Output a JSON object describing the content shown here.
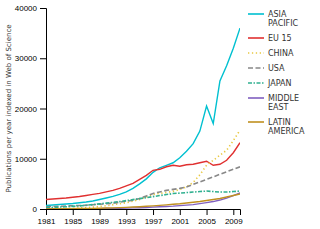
{
  "chart_data": {
    "type": "line",
    "y_label": "Publications per year indexed in Web of Science",
    "x": [
      1981,
      1982,
      1983,
      1984,
      1985,
      1986,
      1987,
      1988,
      1989,
      1990,
      1991,
      1992,
      1993,
      1994,
      1995,
      1996,
      1997,
      1998,
      1999,
      2000,
      2001,
      2002,
      2003,
      2004,
      2005,
      2006,
      2007,
      2008,
      2009,
      2010
    ],
    "series": [
      {
        "name": "ASIA\nPACIFIC",
        "color": "#00c0d0",
        "line_style": "solid",
        "values": [
          700,
          800,
          900,
          1000,
          1100,
          1250,
          1400,
          1600,
          1900,
          2200,
          2500,
          2900,
          3400,
          4100,
          5000,
          6000,
          7300,
          8200,
          8700,
          9200,
          10200,
          11500,
          13000,
          15500,
          20500,
          17000,
          25500,
          28500,
          32000,
          36000
        ]
      },
      {
        "name": "EU 15",
        "color": "#e03030",
        "line_style": "solid",
        "values": [
          1900,
          2000,
          2100,
          2200,
          2350,
          2500,
          2700,
          2900,
          3100,
          3400,
          3700,
          4100,
          4600,
          5100,
          5900,
          6700,
          7700,
          7900,
          8400,
          8700,
          8500,
          8800,
          8900,
          9200,
          9500,
          8700,
          8900,
          9700,
          11200,
          13200
        ]
      },
      {
        "name": "CHINA",
        "color": "#e8c840",
        "line_style": "dotted",
        "values": [
          50,
          60,
          80,
          110,
          150,
          200,
          270,
          370,
          500,
          650,
          850,
          1050,
          1250,
          1550,
          1900,
          2400,
          2900,
          3100,
          3300,
          3500,
          3900,
          4400,
          5300,
          6800,
          8700,
          9700,
          10700,
          11700,
          13600,
          15700
        ]
      },
      {
        "name": "USA",
        "color": "#888888",
        "line_style": "dashed",
        "values": [
          450,
          500,
          550,
          600,
          650,
          700,
          750,
          850,
          950,
          1050,
          1150,
          1350,
          1550,
          1750,
          2100,
          2600,
          3100,
          3400,
          3700,
          3900,
          4100,
          4400,
          4900,
          5400,
          5900,
          6400,
          6900,
          7400,
          7900,
          8400
        ]
      },
      {
        "name": "JAPAN",
        "color": "#30b090",
        "line_style": "dashdot",
        "values": [
          270,
          320,
          380,
          450,
          530,
          620,
          730,
          880,
          1020,
          1170,
          1320,
          1470,
          1670,
          1870,
          2070,
          2270,
          2470,
          2670,
          2870,
          3070,
          3170,
          3270,
          3370,
          3470,
          3570,
          3470,
          3370,
          3370,
          3470,
          3570
        ]
      },
      {
        "name": "MIDDLE\nEAST",
        "color": "#8060c0",
        "line_style": "solid",
        "values": [
          15,
          20,
          25,
          30,
          35,
          45,
          55,
          65,
          80,
          100,
          120,
          150,
          180,
          220,
          260,
          310,
          370,
          440,
          510,
          580,
          680,
          780,
          880,
          1080,
          1280,
          1480,
          1780,
          2180,
          2680,
          3180
        ]
      },
      {
        "name": "LATIN\nAMERICA",
        "color": "#c09020",
        "line_style": "solid",
        "values": [
          25,
          35,
          45,
          55,
          70,
          85,
          105,
          125,
          155,
          190,
          230,
          280,
          330,
          390,
          460,
          540,
          630,
          730,
          830,
          940,
          1040,
          1190,
          1340,
          1490,
          1690,
          1890,
          2090,
          2390,
          2690,
          2990
        ]
      }
    ],
    "xlim": [
      1981,
      2010
    ],
    "xticks": [
      1981,
      1985,
      1989,
      1993,
      1997,
      2001,
      2005,
      2009
    ],
    "ylim": [
      0,
      40000
    ],
    "yticks": [
      0,
      10000,
      20000,
      30000,
      40000
    ],
    "grid": false,
    "legend": "right"
  }
}
